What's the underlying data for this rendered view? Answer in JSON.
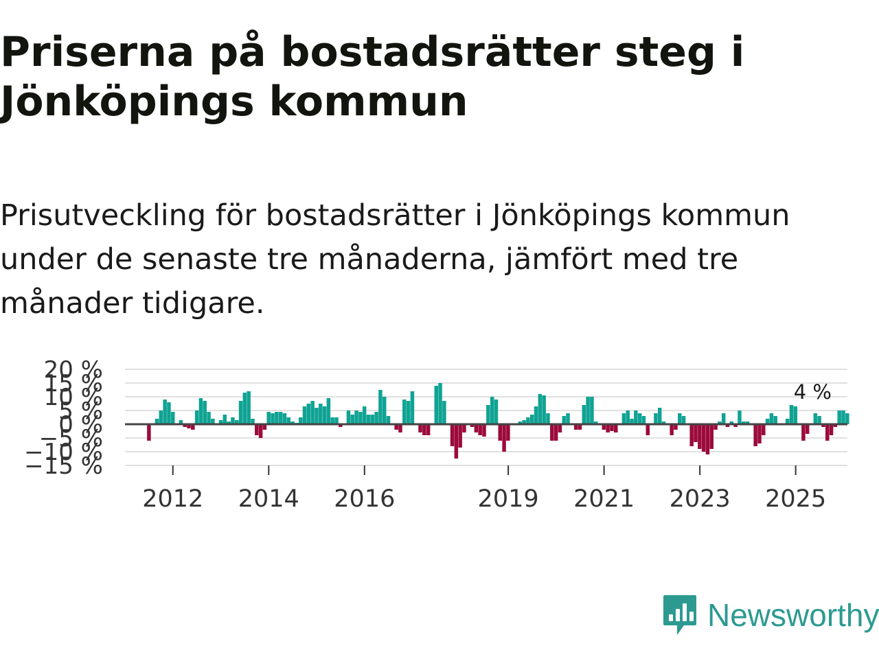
{
  "title": "Priserna på bostadsrätter steg i Jönköpings kommun",
  "subtitle": "Prisutveckling för bostadsrätter i Jönköpings kommun under de senaste tre månaderna, jämfört med tre månader tidigare.",
  "brand": {
    "name": "Newsworthy",
    "color": "#2c9a91",
    "icon": "newsworthy-bar-chart-icon"
  },
  "colors": {
    "positive": "#10a394",
    "negative": "#9c0a3c",
    "grid": "#e0e0e0",
    "zero_line": "#444444"
  },
  "chart_data": {
    "type": "bar",
    "title": "Prisutveckling för bostadsrätter i Jönköpings kommun",
    "xlabel": "",
    "ylabel": "",
    "ylim": [
      -15,
      20
    ],
    "yticks": [
      -15,
      -10,
      -5,
      0,
      5,
      10,
      15,
      20
    ],
    "ytick_labels": [
      "−15 %",
      "−10 %",
      "−5 %",
      "0 %",
      "5 %",
      "10 %",
      "15 %",
      "20 %"
    ],
    "xticks": [
      2012,
      2014,
      2016,
      2019,
      2021,
      2023,
      2025
    ],
    "xtick_labels": [
      "2012",
      "2014",
      "2016",
      "2019",
      "2021",
      "2023",
      "2025"
    ],
    "x_start": 2011.0,
    "x_end": 2026.08,
    "bar_start": 2011.5,
    "bar_step": 0.0833,
    "last_value_label": "4 %",
    "values": [
      -6.0,
      0,
      2.0,
      5.0,
      9.0,
      8.0,
      4.5,
      0,
      1.5,
      -1.0,
      -1.5,
      -2.0,
      5.0,
      9.5,
      8.5,
      4.5,
      2.0,
      0,
      1.5,
      3.5,
      1.0,
      2.5,
      1.5,
      8.5,
      11.5,
      12.0,
      2.0,
      -4.0,
      -5.0,
      -2.0,
      4.5,
      4.0,
      4.5,
      4.5,
      4.0,
      2.5,
      1.0,
      0.5,
      2.5,
      6.5,
      7.5,
      8.5,
      6.0,
      7.5,
      6.5,
      9.5,
      2.5,
      2.5,
      -1.0,
      0,
      5.0,
      3.5,
      5.0,
      4.5,
      6.5,
      3.5,
      3.5,
      4.5,
      12.5,
      10.0,
      3.0,
      0,
      -2.0,
      -3.0,
      9.0,
      8.5,
      12.0,
      0,
      -3.0,
      -4.0,
      -4.0,
      0,
      14.0,
      15.0,
      8.5,
      0,
      -8.0,
      -12.5,
      -8.5,
      -3.0,
      0,
      -1.0,
      -3.0,
      -4.0,
      -4.5,
      7.0,
      10.0,
      9.0,
      -6.0,
      -10.0,
      -6.0,
      0,
      0,
      1.0,
      1.5,
      2.5,
      3.5,
      6.5,
      11.0,
      10.5,
      4.0,
      -6.0,
      -6.0,
      -3.0,
      3.0,
      4.0,
      0,
      -2.0,
      -2.0,
      7.0,
      10.0,
      10.0,
      1.0,
      0,
      -2.0,
      -3.0,
      -2.5,
      -3.0,
      0,
      4.0,
      5.0,
      2.0,
      5.0,
      4.0,
      3.0,
      -4.0,
      0,
      4.0,
      6.0,
      1.0,
      0,
      -4.0,
      -2.0,
      4.0,
      3.0,
      0,
      -8.0,
      -6.5,
      -9.0,
      -10.0,
      -11.0,
      -9.0,
      -2.0,
      1.0,
      4.0,
      -1.0,
      1.0,
      -1.0,
      5.0,
      1.0,
      1.0,
      0,
      -8.0,
      -7.0,
      -4.0,
      2.0,
      4.0,
      3.0,
      0,
      0,
      2.0,
      7.0,
      6.5,
      0,
      -6.0,
      -3.5,
      0,
      4.0,
      3.0,
      -1.0,
      -6.0,
      -4.0,
      -1.0,
      5.0,
      5.0,
      4.0
    ]
  }
}
